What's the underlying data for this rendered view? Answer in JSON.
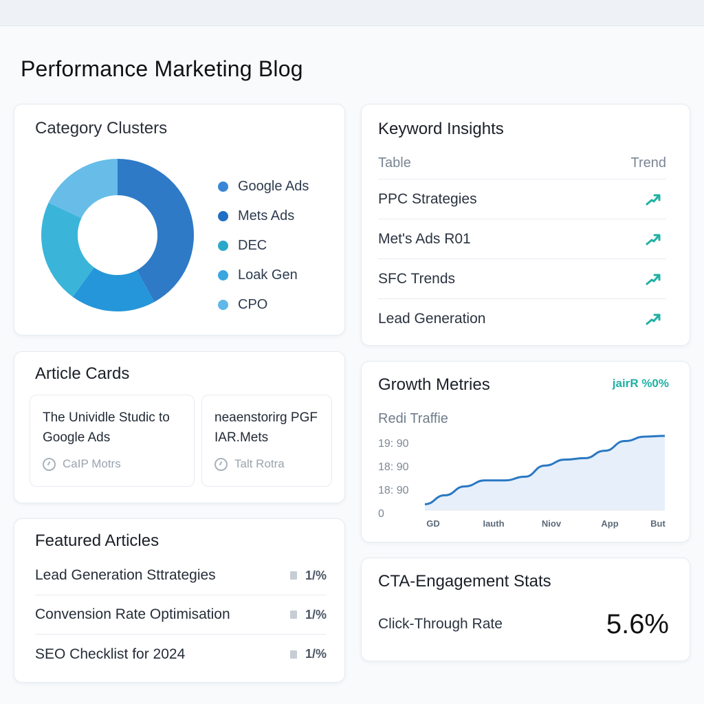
{
  "page": {
    "title": "Performance Marketing Blog"
  },
  "category_clusters": {
    "title": "Category Clusters",
    "items": [
      {
        "label": "Google Ads",
        "color": "#3a86d6",
        "share": 0.4
      },
      {
        "label": "Mets Ads",
        "color": "#1f6fc2",
        "share": 0.16
      },
      {
        "label": "DEC",
        "color": "#2aa8c9",
        "share": 0.16
      },
      {
        "label": "Loak Gen",
        "color": "#3aa6e0",
        "share": 0.12
      },
      {
        "label": "CPO",
        "color": "#5fb8e8",
        "share": 0.16
      }
    ],
    "donut_colors": [
      "#2e7ac6",
      "#2596d9",
      "#3ab5d9",
      "#67bde8"
    ]
  },
  "keyword_insights": {
    "title": "Keyword Insights",
    "col_table": "Table",
    "col_trend": "Trend",
    "rows": [
      {
        "label": "PPC Strategies",
        "trend_icon": "trend-up-icon"
      },
      {
        "label": "Met's Ads R01",
        "trend_icon": "trend-up-icon"
      },
      {
        "label": "SFC Trends",
        "trend_icon": "trend-up-icon"
      },
      {
        "label": "Lead Generation",
        "trend_icon": "trend-up-icon"
      }
    ],
    "trend_color": "#1fb0a3"
  },
  "article_cards": {
    "title": "Article Cards",
    "cards": [
      {
        "title": "The Unividle Studic to Google Ads",
        "meta": "CaIP Motrs"
      },
      {
        "title": "neaenstorirg PGF IAR.Mets",
        "meta": "Talt Rotra"
      }
    ]
  },
  "featured_articles": {
    "title": "Featured Articles",
    "rows": [
      {
        "label": "Lead Generation Sttrategies",
        "value": "1/%"
      },
      {
        "label": "Convension Rate Optimisation",
        "value": "1/%"
      },
      {
        "label": "SEO Checklist  for 2024",
        "value": "1/%"
      }
    ]
  },
  "growth_metrics": {
    "title": "Growth Metries",
    "badge": "jairR  %0%",
    "subtitle": "Redi Traffie"
  },
  "chart_data": {
    "type": "area",
    "title": "Redi Traffie",
    "y_tick_labels": [
      "19: 90",
      "18: 90",
      "18: 90",
      "0"
    ],
    "x_tick_labels": [
      "GD",
      "Iauth",
      "Niov",
      "App",
      "But"
    ],
    "x": [
      0,
      1,
      2,
      3,
      4,
      5,
      6,
      7,
      8,
      9,
      10,
      11,
      12
    ],
    "values": [
      0.08,
      0.2,
      0.32,
      0.4,
      0.4,
      0.45,
      0.6,
      0.68,
      0.7,
      0.8,
      0.93,
      0.99,
      1.0
    ],
    "ylim": [
      0,
      1
    ],
    "line_color": "#2a78c2",
    "fill_color": "#e6effa",
    "grid": false
  },
  "cta_stats": {
    "title": "CTA-Engagement Stats",
    "label": "Click-Through Rate",
    "value": "5.6%"
  }
}
